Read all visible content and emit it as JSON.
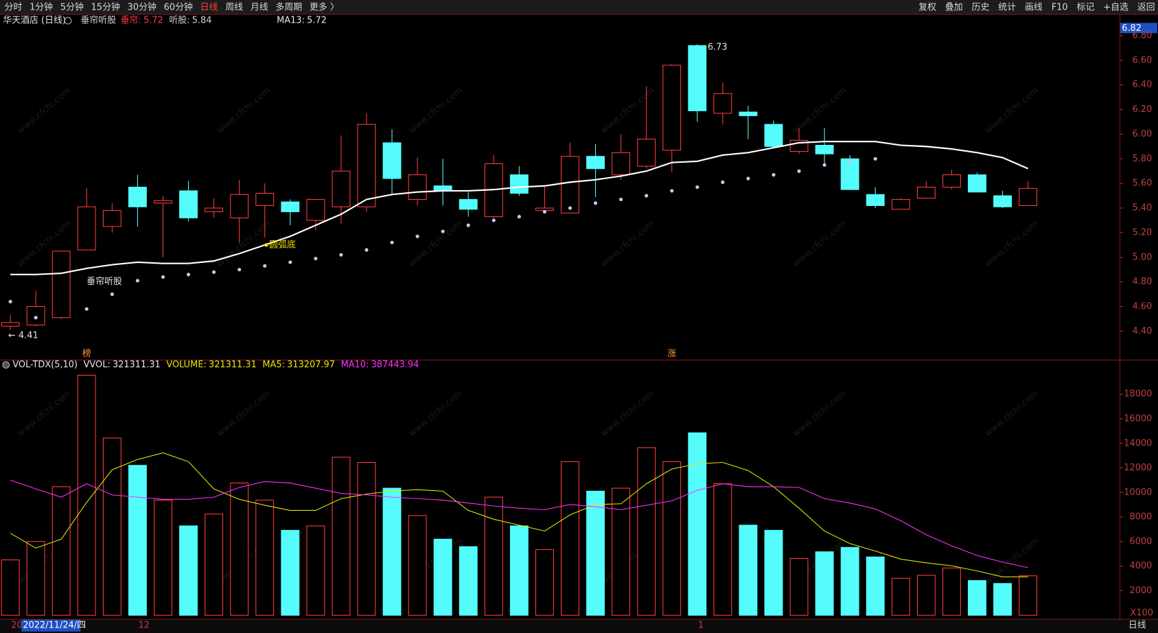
{
  "toolbar": {
    "left": [
      "分时",
      "1分钟",
      "5分钟",
      "15分钟",
      "30分钟",
      "60分钟",
      "日线",
      "周线",
      "月线",
      "多周期",
      "更多 〉"
    ],
    "active": "日线",
    "right": [
      "复权",
      "叠加",
      "历史",
      "统计",
      "画线",
      "F10",
      "标记",
      "+自选",
      "返回"
    ]
  },
  "watermark": "www.cfchi.com",
  "chart_data": [
    {
      "type": "candlestick",
      "title": "华天酒店 (日线)",
      "indicator": "垂帘听股",
      "legend": [
        {
          "label": "垂帘:",
          "value": 5.72,
          "color": "#ff3b3b"
        },
        {
          "label": "听股:",
          "value": 5.84,
          "color": "#d0d0d0"
        },
        {
          "label": "MA13:",
          "value": 5.72,
          "color": "#e6e6e6"
        }
      ],
      "open": [
        4.44,
        4.45,
        4.51,
        5.06,
        5.25,
        5.57,
        5.44,
        5.54,
        5.37,
        5.32,
        5.42,
        5.45,
        5.3,
        5.41,
        5.41,
        5.93,
        5.47,
        5.58,
        5.47,
        5.33,
        5.67,
        5.38,
        5.36,
        5.82,
        5.67,
        5.74,
        5.87,
        6.72,
        6.17,
        6.18,
        6.08,
        5.86,
        5.91,
        5.8,
        5.51,
        5.39,
        5.48,
        5.57,
        5.67,
        5.5,
        5.42
      ],
      "high": [
        4.53,
        4.73,
        5.05,
        5.56,
        5.44,
        5.67,
        5.5,
        5.62,
        5.48,
        5.63,
        5.6,
        5.47,
        5.47,
        5.99,
        6.17,
        6.04,
        5.81,
        5.8,
        5.53,
        5.83,
        5.74,
        5.58,
        5.93,
        5.92,
        6.0,
        6.39,
        6.57,
        6.73,
        6.42,
        6.23,
        6.11,
        6.05,
        6.05,
        5.83,
        5.57,
        5.48,
        5.62,
        5.71,
        5.69,
        5.54,
        5.62
      ],
      "low": [
        4.41,
        4.44,
        4.5,
        5.06,
        5.2,
        5.25,
        5.0,
        5.29,
        5.32,
        5.12,
        5.16,
        5.26,
        5.22,
        5.27,
        5.37,
        5.51,
        5.42,
        5.42,
        5.33,
        5.32,
        5.5,
        5.36,
        5.36,
        5.49,
        5.63,
        5.72,
        5.69,
        6.1,
        6.08,
        5.96,
        5.89,
        5.84,
        5.76,
        5.55,
        5.4,
        5.39,
        5.48,
        5.55,
        5.53,
        5.4,
        5.42
      ],
      "close": [
        4.47,
        4.6,
        5.05,
        5.41,
        5.38,
        5.41,
        5.46,
        5.32,
        5.4,
        5.51,
        5.52,
        5.37,
        5.47,
        5.7,
        6.08,
        5.64,
        5.67,
        5.54,
        5.39,
        5.76,
        5.52,
        5.4,
        5.82,
        5.72,
        5.85,
        5.96,
        6.56,
        6.19,
        6.33,
        6.15,
        5.9,
        5.95,
        5.84,
        5.55,
        5.42,
        5.47,
        5.57,
        5.67,
        5.53,
        5.41,
        5.56
      ],
      "up_color": "#ff3c3c",
      "down_color": "#54fcfc",
      "ma13": {
        "name": "MA13",
        "color": "#ffffff",
        "values": [
          4.86,
          4.86,
          4.87,
          4.91,
          4.94,
          4.96,
          4.95,
          4.95,
          4.97,
          5.03,
          5.1,
          5.17,
          5.26,
          5.35,
          5.47,
          5.51,
          5.53,
          5.54,
          5.54,
          5.55,
          5.57,
          5.58,
          5.61,
          5.63,
          5.66,
          5.7,
          5.77,
          5.78,
          5.83,
          5.85,
          5.89,
          5.93,
          5.94,
          5.94,
          5.94,
          5.91,
          5.9,
          5.88,
          5.85,
          5.81,
          5.72
        ]
      },
      "dots": {
        "color": "#c8c8ff",
        "values": [
          4.64,
          4.51,
          null,
          4.58,
          4.7,
          4.81,
          4.84,
          4.86,
          4.88,
          4.9,
          4.93,
          4.96,
          4.99,
          5.02,
          5.06,
          5.12,
          5.17,
          5.21,
          5.26,
          5.3,
          5.33,
          5.37,
          5.4,
          5.44,
          5.47,
          5.5,
          5.54,
          5.57,
          5.61,
          5.64,
          5.67,
          5.7,
          5.75,
          5.78,
          5.8,
          null,
          null,
          null,
          null,
          null,
          null
        ]
      },
      "annotations": [
        {
          "index": 3,
          "text": "垂帘听股",
          "color": "#e6e6e6"
        },
        {
          "index": 10,
          "text": "圆弧底",
          "color": "#f0e000"
        }
      ],
      "markers": [
        {
          "index": 3,
          "text": "榜"
        },
        {
          "index": 26,
          "text": "涨"
        }
      ],
      "low_arrow": "←",
      "cursor_value": 6.82,
      "ylim": [
        4.18,
        6.91
      ],
      "yticks": [
        {
          "value": 4.4,
          "label": "4.40"
        },
        {
          "value": 4.6,
          "label": "4.60"
        },
        {
          "value": 4.8,
          "label": "4.80"
        },
        {
          "value": 5.0,
          "label": "5.00"
        },
        {
          "value": 5.2,
          "label": "5.20"
        },
        {
          "value": 5.4,
          "label": "5.40"
        },
        {
          "value": 5.6,
          "label": "5.60"
        },
        {
          "value": 5.8,
          "label": "5.80"
        },
        {
          "value": 6.0,
          "label": "6.00"
        },
        {
          "value": 6.2,
          "label": "6.20"
        },
        {
          "value": 6.4,
          "label": "6.40"
        },
        {
          "value": 6.6,
          "label": "6.60"
        },
        {
          "value": 6.8,
          "label": "6.80"
        }
      ],
      "grid": false
    },
    {
      "type": "bar",
      "title": "VOL-TDX(5,10)",
      "legend": [
        {
          "label": "VVOL:",
          "value": 321311.31,
          "color": "#e6e6e6"
        },
        {
          "label": "VOLUME:",
          "value": 321311.31,
          "color": "#e8e800"
        },
        {
          "label": "MA5:",
          "value": 313207.97,
          "color": "#e8e800"
        },
        {
          "label": "MA10:",
          "value": 387443.94,
          "color": "#ff30ff"
        }
      ],
      "values": [
        4510,
        6015,
        10470,
        19550,
        14440,
        12210,
        9380,
        7280,
        8240,
        10770,
        9380,
        6920,
        7280,
        12870,
        12450,
        10350,
        8120,
        6200,
        5590,
        9620,
        7280,
        5350,
        12510,
        10110,
        10350,
        13650,
        12510,
        14860,
        10710,
        7340,
        6920,
        4630,
        5170,
        5530,
        4750,
        3010,
        3250,
        3850,
        2830,
        2590,
        3213
      ],
      "series": [
        {
          "name": "MA5",
          "color": "#e8e800",
          "values": [
            6680,
            5470,
            6200,
            9200,
            11850,
            12690,
            13230,
            12510,
            10290,
            9440,
            8960,
            8540,
            8540,
            9500,
            9870,
            10110,
            10230,
            10110,
            8540,
            7820,
            7340,
            6860,
            8180,
            9020,
            9080,
            10710,
            11910,
            12330,
            12450,
            11790,
            10470,
            8720,
            6860,
            5840,
            5230,
            4570,
            4270,
            4030,
            3610,
            3130,
            3132
          ]
        },
        {
          "name": "MA10",
          "color": "#ff30ff",
          "values": [
            11010,
            10290,
            9620,
            10710,
            9800,
            9620,
            9440,
            9440,
            9620,
            10410,
            10890,
            10770,
            10350,
            9920,
            9800,
            9620,
            9500,
            9380,
            9140,
            8900,
            8720,
            8600,
            9020,
            8840,
            8600,
            8960,
            9320,
            10170,
            10710,
            10470,
            10470,
            10410,
            9500,
            9140,
            8660,
            7700,
            6560,
            5650,
            4870,
            4330,
            3874
          ]
        }
      ],
      "unit_label": "X100",
      "ylim": [
        0,
        20000
      ],
      "yticks": [
        2000,
        4000,
        6000,
        8000,
        10000,
        12000,
        14000,
        16000,
        18000
      ],
      "x_labels": [
        {
          "index": 0,
          "label": "20"
        },
        {
          "index": 5,
          "label": "12"
        },
        {
          "index": 27,
          "label": "1"
        }
      ],
      "cursor_label": "2022/11/24/四",
      "period": "日线",
      "grid": false
    }
  ]
}
